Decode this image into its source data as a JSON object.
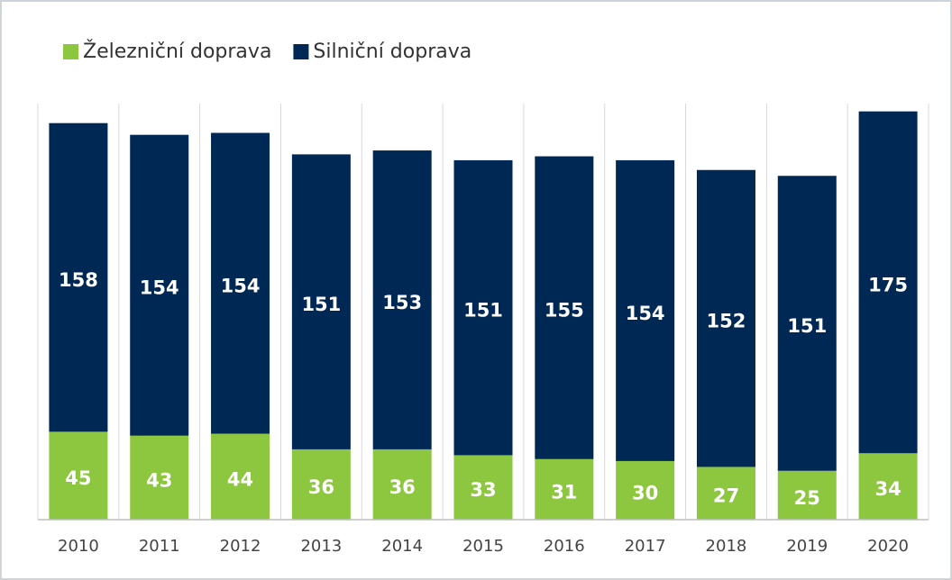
{
  "chart_data": {
    "type": "stacked_bar",
    "categories": [
      "2010",
      "2011",
      "2012",
      "2013",
      "2014",
      "2015",
      "2016",
      "2017",
      "2018",
      "2019",
      "2020"
    ],
    "series": [
      {
        "name": "Železniční doprava",
        "color": "#8dc63f",
        "values": [
          45,
          43,
          44,
          36,
          36,
          33,
          31,
          30,
          27,
          25,
          34
        ]
      },
      {
        "name": "Silniční doprava",
        "color": "#002855",
        "values": [
          158,
          154,
          154,
          151,
          153,
          151,
          155,
          154,
          152,
          151,
          175
        ]
      }
    ],
    "ylim": [
      0,
      213
    ],
    "legend": "top-left"
  }
}
